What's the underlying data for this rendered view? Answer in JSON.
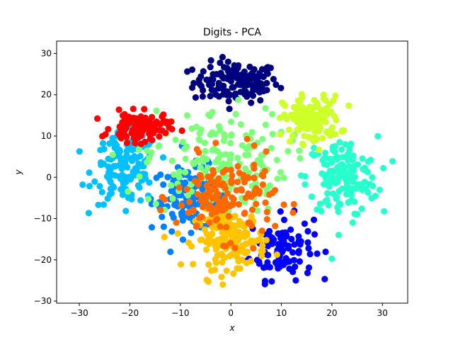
{
  "chart_data": {
    "type": "scatter",
    "title": "Digits - PCA",
    "xlabel": "x",
    "ylabel": "y",
    "xlim": [
      -34.5,
      35
    ],
    "ylim": [
      -30.5,
      33
    ],
    "xticks": [
      -30,
      -20,
      -10,
      0,
      10,
      20,
      30
    ],
    "yticks": [
      -30,
      -20,
      -10,
      0,
      10,
      20,
      30
    ],
    "grid": false,
    "legend": "none",
    "colormap": "jet",
    "series": [
      {
        "color": "#00007f",
        "cluster": {
          "center": [
            1,
            23
          ],
          "spread": [
            6,
            3.5
          ],
          "count": 140
        }
      },
      {
        "color": "#0000ff",
        "cluster": {
          "center": [
            10,
            -17
          ],
          "spread": [
            4.5,
            5.5
          ],
          "count": 110
        }
      },
      {
        "color": "#0080ff",
        "cluster": {
          "center": [
            -8,
            -5
          ],
          "spread": [
            5.5,
            5.5
          ],
          "count": 130
        }
      },
      {
        "color": "#00c0ff",
        "cluster": {
          "center": [
            -21,
            2
          ],
          "spread": [
            4.5,
            6
          ],
          "count": 140
        }
      },
      {
        "color": "#29ffce",
        "cluster": {
          "center": [
            22,
            0
          ],
          "spread": [
            5,
            7
          ],
          "count": 150
        }
      },
      {
        "color": "#7dff7a",
        "cluster": {
          "center": [
            -3,
            4
          ],
          "spread": [
            10,
            9
          ],
          "count": 170
        }
      },
      {
        "color": "#ceff29",
        "cluster": {
          "center": [
            16,
            14
          ],
          "spread": [
            4,
            4
          ],
          "count": 140
        }
      },
      {
        "color": "#ffc400",
        "cluster": {
          "center": [
            0,
            -15
          ],
          "spread": [
            5,
            5
          ],
          "count": 170
        }
      },
      {
        "color": "#ff6800",
        "cluster": {
          "center": [
            -1,
            -5
          ],
          "spread": [
            7,
            7
          ],
          "count": 150
        }
      },
      {
        "color": "#ff0000",
        "cluster": {
          "center": [
            -18,
            12
          ],
          "spread": [
            4,
            2.5
          ],
          "count": 120
        }
      }
    ]
  }
}
